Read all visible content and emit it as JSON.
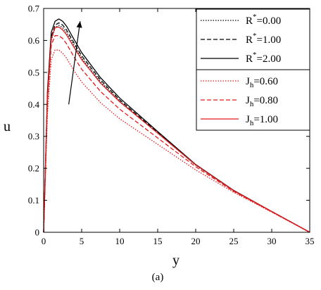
{
  "chart_data": {
    "type": "line",
    "xlabel": "y",
    "ylabel": "u",
    "caption": "(a)",
    "xlim": [
      0,
      35
    ],
    "ylim": [
      0,
      0.7
    ],
    "xticks": [
      "0",
      "5",
      "10",
      "15",
      "20",
      "25",
      "30",
      "35"
    ],
    "yticks": [
      "0",
      "0.1",
      "0.2",
      "0.3",
      "0.4",
      "0.5",
      "0.6",
      "0.7"
    ],
    "grid": false,
    "legend_position": "top-right",
    "series": [
      {
        "name_base": "R",
        "name_sup": "*",
        "name_value": "=0.00",
        "color": "#000000",
        "style": "dotted",
        "x": [
          0,
          0.5,
          1,
          1.5,
          2,
          2.5,
          3,
          4,
          5,
          7.5,
          10,
          15,
          20,
          25,
          30,
          35
        ],
        "values": [
          0,
          0.42,
          0.6,
          0.64,
          0.647,
          0.64,
          0.625,
          0.585,
          0.545,
          0.47,
          0.41,
          0.31,
          0.21,
          0.13,
          0.065,
          0
        ]
      },
      {
        "name_base": "R",
        "name_sup": "*",
        "name_value": "=1.00",
        "color": "#000000",
        "style": "dashed",
        "x": [
          0,
          0.5,
          1,
          1.5,
          2,
          2.5,
          3,
          4,
          5,
          7.5,
          10,
          15,
          20,
          25,
          30,
          35
        ],
        "values": [
          0,
          0.43,
          0.61,
          0.648,
          0.655,
          0.648,
          0.633,
          0.592,
          0.552,
          0.476,
          0.414,
          0.312,
          0.211,
          0.13,
          0.065,
          0
        ]
      },
      {
        "name_base": "R",
        "name_sup": "*",
        "name_value": "=2.00",
        "color": "#000000",
        "style": "solid",
        "x": [
          0,
          0.5,
          1,
          1.5,
          2,
          2.5,
          3,
          4,
          5,
          7.5,
          10,
          15,
          20,
          25,
          30,
          35
        ],
        "values": [
          0,
          0.44,
          0.625,
          0.66,
          0.667,
          0.66,
          0.645,
          0.603,
          0.562,
          0.483,
          0.42,
          0.315,
          0.212,
          0.131,
          0.065,
          0
        ]
      },
      {
        "name_base": "J",
        "name_sub": "h",
        "name_value": "=0.60",
        "color": "#e31a1c",
        "style": "dotted",
        "x": [
          0,
          0.5,
          1,
          1.5,
          2,
          2.5,
          3,
          4,
          5,
          7.5,
          10,
          15,
          20,
          25,
          30,
          35
        ],
        "values": [
          0,
          0.37,
          0.54,
          0.57,
          0.57,
          0.56,
          0.545,
          0.505,
          0.47,
          0.405,
          0.355,
          0.275,
          0.195,
          0.125,
          0.063,
          0
        ]
      },
      {
        "name_base": "J",
        "name_sub": "h",
        "name_value": "=0.80",
        "color": "#e31a1c",
        "style": "dashed",
        "x": [
          0,
          0.5,
          1,
          1.5,
          2,
          2.5,
          3,
          4,
          5,
          7.5,
          10,
          15,
          20,
          25,
          30,
          35
        ],
        "values": [
          0,
          0.405,
          0.585,
          0.615,
          0.615,
          0.606,
          0.59,
          0.548,
          0.51,
          0.44,
          0.385,
          0.295,
          0.205,
          0.128,
          0.064,
          0
        ]
      },
      {
        "name_base": "J",
        "name_sub": "h",
        "name_value": "=1.00",
        "color": "#e31a1c",
        "style": "solid",
        "x": [
          0,
          0.5,
          1,
          1.5,
          2,
          2.5,
          3,
          4,
          5,
          7.5,
          10,
          15,
          20,
          25,
          30,
          35
        ],
        "values": [
          0,
          0.425,
          0.605,
          0.64,
          0.642,
          0.633,
          0.618,
          0.578,
          0.54,
          0.466,
          0.408,
          0.31,
          0.211,
          0.13,
          0.065,
          0
        ]
      }
    ],
    "annotation": {
      "type": "arrow",
      "label": "",
      "from": [
        3.3,
        0.4
      ],
      "to": [
        4.8,
        0.66
      ]
    }
  }
}
